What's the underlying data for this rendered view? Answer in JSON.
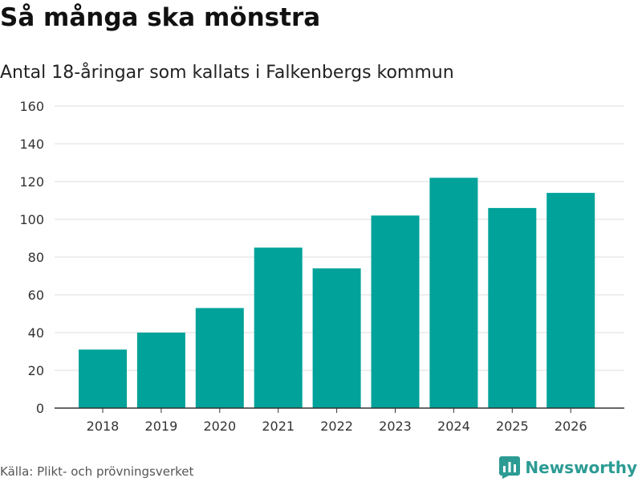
{
  "title": "Så många ska mönstra",
  "subtitle": "Antal 18-åringar som kallats i Falkenbergs kommun",
  "source": "Källa: Plikt- och prövningsverket",
  "brand": {
    "name": "Newsworthy",
    "icon": "bar-chart-logo-icon"
  },
  "colors": {
    "bar": "#00a29a",
    "grid": "#dddddd",
    "axis": "#333333",
    "brand": "#2c9b94"
  },
  "chart_data": {
    "type": "bar",
    "title": "Så många ska mönstra",
    "subtitle": "Antal 18-åringar som kallats i Falkenbergs kommun",
    "xlabel": "",
    "ylabel": "",
    "categories": [
      "2018",
      "2019",
      "2020",
      "2021",
      "2022",
      "2023",
      "2024",
      "2025",
      "2026"
    ],
    "values": [
      31,
      40,
      53,
      85,
      74,
      102,
      122,
      106,
      114
    ],
    "ylim": [
      0,
      160
    ],
    "yticks": [
      0,
      20,
      40,
      60,
      80,
      100,
      120,
      140,
      160
    ],
    "grid": true,
    "legend": "none"
  }
}
